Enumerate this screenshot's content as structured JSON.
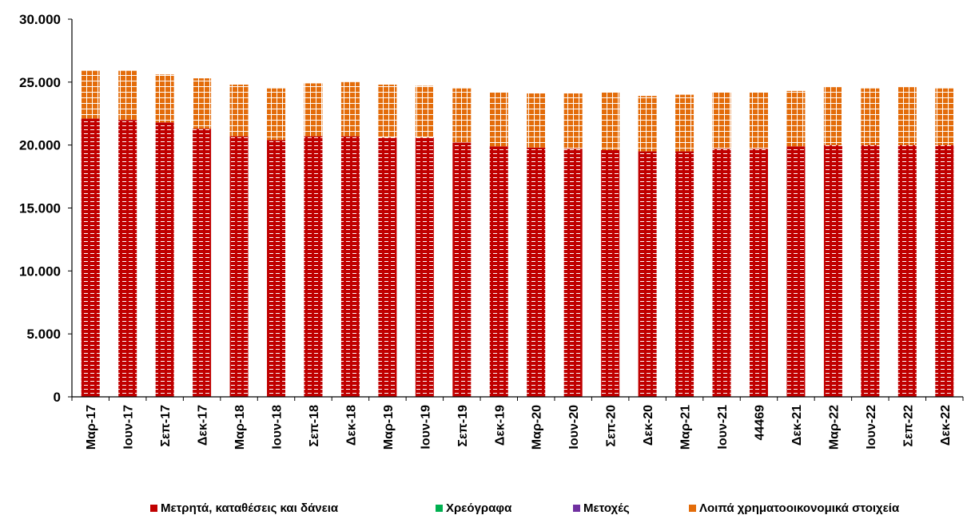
{
  "chart_data": {
    "type": "bar",
    "stacked": true,
    "title": "",
    "xlabel": "",
    "ylabel": "",
    "ylim": [
      0,
      30000
    ],
    "yticks": [
      "0",
      "5.000",
      "10.000",
      "15.000",
      "20.000",
      "25.000",
      "30.000"
    ],
    "ytick_values": [
      0,
      5000,
      10000,
      15000,
      20000,
      25000,
      30000
    ],
    "categories": [
      "Μαρ-17",
      "Ιουν-17",
      "Σεπ-17",
      "Δεκ-17",
      "Μαρ-18",
      "Ιουν-18",
      "Σεπ-18",
      "Δεκ-18",
      "Μαρ-19",
      "Ιουν-19",
      "Σεπ-19",
      "Δεκ-19",
      "Μαρ-20",
      "Ιουν-20",
      "Σεπ-20",
      "Δεκ-20",
      "Μαρ-21",
      "Ιουν-21",
      "44469",
      "Δεκ-21",
      "Μαρ-22",
      "Ιουν-22",
      "Σεπ-22",
      "Δεκ-22"
    ],
    "series": [
      {
        "name": "Μετρητά, καταθέσεις και δάνεια",
        "color": "#c00000",
        "values": [
          22100,
          22000,
          21800,
          21300,
          20700,
          20400,
          20700,
          20700,
          20600,
          20600,
          20200,
          19900,
          19800,
          19700,
          19600,
          19500,
          19500,
          19700,
          19700,
          19900,
          20000,
          20000,
          20000,
          20000
        ]
      },
      {
        "name": "Χρεόγραφα",
        "color": "#00b050",
        "values": [
          0,
          0,
          0,
          0,
          0,
          0,
          0,
          0,
          0,
          0,
          0,
          0,
          0,
          0,
          0,
          0,
          0,
          0,
          0,
          0,
          0,
          0,
          0,
          0
        ]
      },
      {
        "name": "Μετοχές",
        "color": "#7030a0",
        "values": [
          0,
          0,
          0,
          0,
          0,
          0,
          0,
          0,
          0,
          0,
          0,
          0,
          0,
          0,
          0,
          0,
          0,
          0,
          0,
          0,
          0,
          0,
          0,
          0
        ]
      },
      {
        "name": "Λοιπά χρηματοοικονομικά στοιχεία",
        "color": "#e36c0a",
        "values": [
          3800,
          3900,
          3800,
          4000,
          4100,
          4100,
          4200,
          4300,
          4200,
          4100,
          4300,
          4300,
          4300,
          4400,
          4600,
          4400,
          4500,
          4500,
          4500,
          4400,
          4600,
          4500,
          4600,
          4500
        ]
      }
    ],
    "legend_position": "bottom",
    "grid": false
  }
}
